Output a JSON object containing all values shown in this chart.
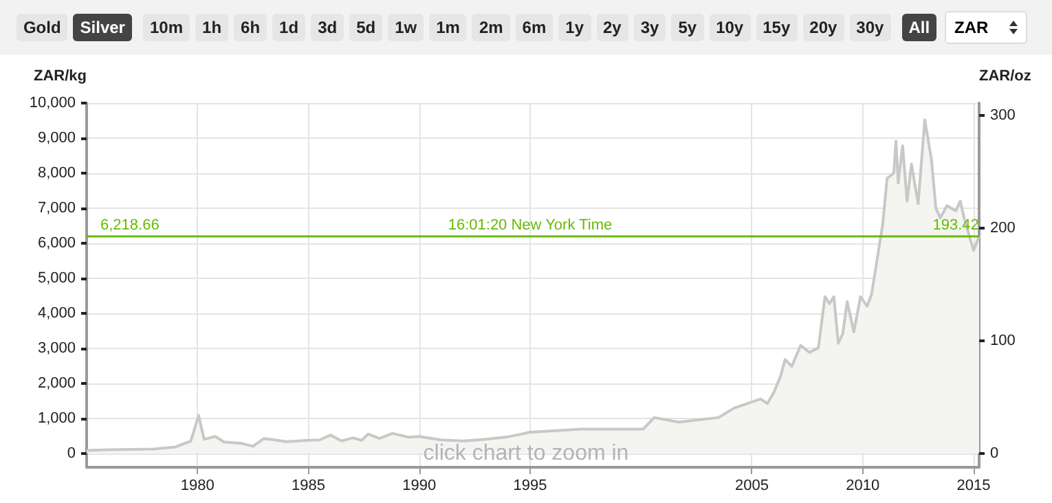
{
  "chart_data": {
    "type": "area",
    "ylabel": "ZAR/kg",
    "y2label": "ZAR/oz",
    "x": [
      1975.0,
      1976,
      1977,
      1978,
      1979,
      1979.7,
      1980.05,
      1980.3,
      1980.8,
      1981.2,
      1982,
      1982.5,
      1983,
      1983.5,
      1984,
      1985,
      1985.5,
      1986,
      1986.5,
      1987,
      1987.4,
      1987.7,
      1988.2,
      1988.8,
      1989.5,
      1990,
      1991,
      1992,
      1993,
      1994,
      1995,
      1997.3,
      2000.1,
      2000.6,
      2001.7,
      2003.5,
      2004.2,
      2005.4,
      2005.7,
      2006.0,
      2006.3,
      2006.5,
      2006.8,
      2007.2,
      2007.6,
      2008.0,
      2008.3,
      2008.5,
      2008.7,
      2008.9,
      2009.1,
      2009.3,
      2009.6,
      2009.9,
      2010.2,
      2010.4,
      2010.9,
      2011.1,
      2011.4,
      2011.5,
      2011.6,
      2011.8,
      2012.0,
      2012.2,
      2012.5,
      2012.8,
      2013.1,
      2013.3,
      2013.5,
      2013.8,
      2014.2,
      2014.4,
      2014.6,
      2015.0,
      2015.25
    ],
    "series": [
      {
        "color": "#c8c8c8",
        "values": [
          80,
          100,
          110,
          120,
          180,
          350,
          1080,
          400,
          480,
          320,
          280,
          200,
          420,
          380,
          330,
          370,
          380,
          520,
          350,
          440,
          370,
          550,
          420,
          570,
          460,
          480,
          380,
          350,
          400,
          470,
          600,
          690,
          690,
          1020,
          890,
          1020,
          1290,
          1550,
          1420,
          1750,
          2210,
          2680,
          2480,
          3080,
          2880,
          3010,
          4470,
          4270,
          4470,
          3140,
          3410,
          4330,
          3470,
          4470,
          4200,
          4540,
          6530,
          7850,
          8000,
          8910,
          7720,
          8780,
          7200,
          8260,
          7130,
          9520,
          8390,
          7000,
          6720,
          7070,
          6920,
          7200,
          6660,
          5790,
          6200
        ]
      }
    ],
    "xlim": [
      1975,
      2015.25
    ],
    "xticks": [
      1980,
      1985,
      1990,
      1995,
      2005,
      2010,
      2015
    ],
    "ylim": [
      -400,
      10000
    ],
    "yticks": [
      {
        "value": 0,
        "label": "0"
      },
      {
        "value": 1000,
        "label": "1,000"
      },
      {
        "value": 2000,
        "label": "2,000"
      },
      {
        "value": 3000,
        "label": "3,000"
      },
      {
        "value": 4000,
        "label": "4,000"
      },
      {
        "value": 5000,
        "label": "5,000"
      },
      {
        "value": 6000,
        "label": "6,000"
      },
      {
        "value": 7000,
        "label": "7,000"
      },
      {
        "value": 8000,
        "label": "8,000"
      },
      {
        "value": 9000,
        "label": "9,000"
      },
      {
        "value": 10000,
        "label": "10,000"
      }
    ],
    "y2lim": [
      -12.4,
      311
    ],
    "y2ticks": [
      0,
      100,
      200,
      300
    ],
    "ref_lines": [
      {
        "axis": "y",
        "value": 6218.66,
        "label": "6,218.66",
        "color": "#66bb00"
      }
    ],
    "annotations": [
      "Gold",
      "Silver",
      "10m",
      "1h",
      "6h",
      "1d",
      "3d",
      "5d",
      "1w",
      "1m",
      "2m",
      "6m",
      "1y",
      "2y",
      "3y",
      "5y",
      "10y",
      "15y",
      "20y",
      "30y",
      "All",
      "ZAR",
      {
        "text": "16:01:20 New York Time",
        "x": 1995,
        "y": 6218.66
      },
      {
        "text": "193.42",
        "x": 2014.2,
        "y": 6218.66
      },
      "click chart to zoom in"
    ],
    "grid": true,
    "marker": "none"
  }
}
